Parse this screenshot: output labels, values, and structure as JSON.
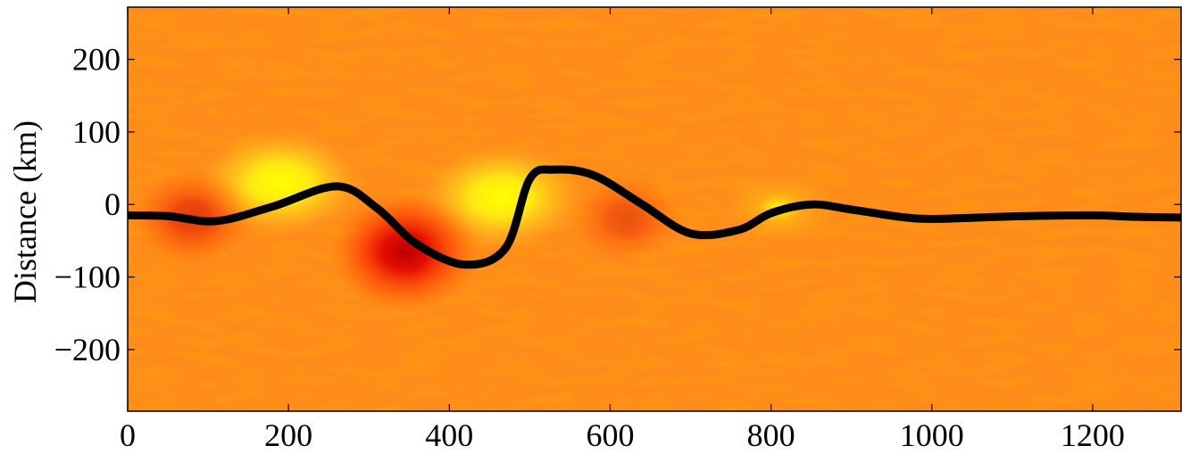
{
  "chart_data": {
    "type": "heatmap",
    "title": "",
    "xlabel": "",
    "ylabel": "Distance (km)",
    "xlim": [
      0,
      1310
    ],
    "ylim": [
      -285,
      272
    ],
    "x_ticks": [
      "0",
      "200",
      "400",
      "600",
      "800",
      "1000",
      "1200"
    ],
    "x_tick_values": [
      0,
      200,
      400,
      600,
      800,
      1000,
      1200
    ],
    "y_ticks": [
      "200",
      "100",
      "0",
      "−100",
      "−200"
    ],
    "y_tick_values": [
      200,
      100,
      0,
      -100,
      -200
    ],
    "grid": false,
    "colormap": [
      "#c00000",
      "#ff0000",
      "#ff6a00",
      "#ff9a1f",
      "#ffd21a",
      "#ffff00"
    ],
    "background_color": "#ff8c1a",
    "anomalies": [
      {
        "x": 190,
        "y": 30,
        "value": 1.0
      },
      {
        "x": 465,
        "y": 10,
        "value": 1.0
      },
      {
        "x": 345,
        "y": -65,
        "value": -1.0
      },
      {
        "x": 80,
        "y": -18,
        "value": -0.55
      },
      {
        "x": 620,
        "y": -20,
        "value": -0.4
      },
      {
        "x": 810,
        "y": -5,
        "value": 0.3
      }
    ],
    "series": [
      {
        "line_color": "#000000",
        "x": [
          0,
          50,
          110,
          180,
          260,
          310,
          360,
          420,
          470,
          500,
          530,
          580,
          640,
          700,
          760,
          800,
          850,
          900,
          960,
          1000,
          1060,
          1120,
          1200,
          1250,
          1310
        ],
        "y": [
          -15,
          -16,
          -23,
          -3,
          25,
          -5,
          -55,
          -83,
          -60,
          35,
          48,
          40,
          0,
          -40,
          -35,
          -12,
          0,
          -7,
          -17,
          -20,
          -18,
          -16,
          -15,
          -17,
          -18
        ]
      }
    ]
  }
}
